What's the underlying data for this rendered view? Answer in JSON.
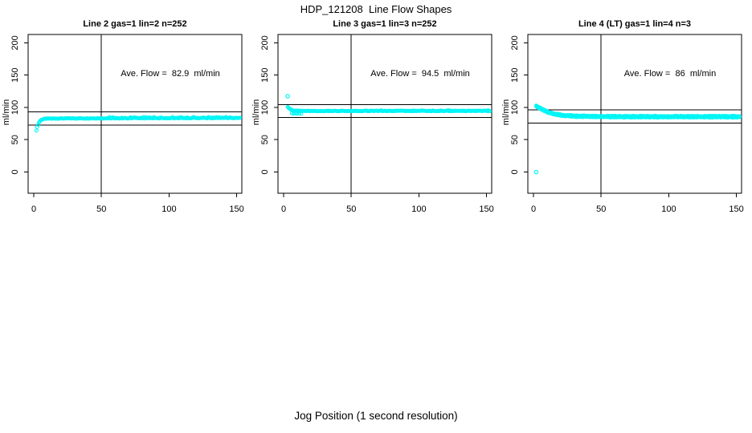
{
  "title": "HDP_121208  Line Flow Shapes",
  "xlabel": "Jog Position (1 second resolution)",
  "marker_color": "#00F5F5",
  "line_color": "#000000",
  "chart_data": [
    {
      "type": "scatter",
      "title": "Line 2 gas=1 lin=2 n=252",
      "ylabel": "ml/min",
      "annotation": "Ave. Flow =  82.9  ml/min",
      "ave_flow_ml_min": 82.9,
      "n_points": 252,
      "xticks": [
        0,
        50,
        100,
        150
      ],
      "yticks": [
        0,
        50,
        100,
        150,
        200
      ],
      "xlim": [
        -4.2,
        153.8
      ],
      "ylim": [
        -33,
        213
      ],
      "ref_lines_y": [
        92.9,
        72.9
      ],
      "vline_x": 50,
      "x_start": 2,
      "x_end": 152.4,
      "series_profile": [
        [
          2,
          64.6
        ],
        [
          3,
          72.5
        ],
        [
          4,
          77.5
        ],
        [
          5,
          79.8
        ],
        [
          6,
          81.2
        ],
        [
          8,
          82.3
        ],
        [
          10,
          82.6
        ],
        [
          20,
          82.9
        ],
        [
          40,
          83.0
        ],
        [
          60,
          83.1
        ],
        [
          80,
          83.2
        ],
        [
          100,
          83.3
        ],
        [
          120,
          83.4
        ],
        [
          152,
          83.5
        ]
      ],
      "noise": 0.4,
      "spikes": {
        "from_x": 55,
        "amp": 1.7,
        "threshold": 0.45
      },
      "run_offsets": [
        0
      ],
      "outlier_points": [],
      "extra_points": [],
      "annotation_pos": [
        101,
        152
      ],
      "grid": false
    },
    {
      "type": "scatter",
      "title": "Line 3 gas=1 lin=3 n=252",
      "ylabel": "ml/min",
      "annotation": "Ave. Flow =  94.5  ml/min",
      "ave_flow_ml_min": 94.5,
      "n_points": 252,
      "xticks": [
        0,
        50,
        100,
        150
      ],
      "yticks": [
        0,
        50,
        100,
        150,
        200
      ],
      "xlim": [
        -4.2,
        153.8
      ],
      "ylim": [
        -33,
        213
      ],
      "ref_lines_y": [
        104.5,
        84.5
      ],
      "vline_x": 50,
      "x_start": 3,
      "x_end": 152.4,
      "series_profile": [
        [
          3,
          100.8
        ],
        [
          3.6,
          99.3
        ],
        [
          4.2,
          98.2
        ],
        [
          5,
          97.1
        ],
        [
          6,
          96.1
        ],
        [
          7,
          95.5
        ],
        [
          8,
          95.1
        ],
        [
          10,
          94.7
        ],
        [
          13,
          94.5
        ],
        [
          20,
          94.4
        ],
        [
          40,
          94.4
        ],
        [
          80,
          94.5
        ],
        [
          120,
          94.5
        ],
        [
          152,
          94.5
        ]
      ],
      "noise": 0.4,
      "spikes": {
        "from_x": 60,
        "amp": 0.8,
        "threshold": 0.6
      },
      "run_offsets": [
        0
      ],
      "outlier_points": [
        [
          3,
          117.5
        ]
      ],
      "extra_points": [
        [
          6,
          90.9
        ],
        [
          7.2,
          90.4
        ],
        [
          8.5,
          90.7
        ],
        [
          10,
          90.3
        ],
        [
          11.5,
          90.6
        ],
        [
          13,
          90.2
        ]
      ],
      "annotation_pos": [
        100,
        152
      ],
      "grid": false
    },
    {
      "type": "scatter",
      "title": "Line 4 (LT) gas=1 lin=4 n=3",
      "ylabel": "ml/min",
      "annotation": "Ave. Flow =  86  ml/min",
      "ave_flow_ml_min": 86,
      "n_points": 160,
      "xticks": [
        0,
        50,
        100,
        150
      ],
      "yticks": [
        0,
        50,
        100,
        150,
        200
      ],
      "xlim": [
        -4.2,
        153.8
      ],
      "ylim": [
        -33,
        213
      ],
      "ref_lines_y": [
        96,
        76
      ],
      "vline_x": 50,
      "x_start": 2,
      "x_end": 152.4,
      "series_profile": [
        [
          2,
          102.3
        ],
        [
          4,
          99.6
        ],
        [
          6,
          97.2
        ],
        [
          8,
          95.1
        ],
        [
          10,
          93.3
        ],
        [
          12,
          91.8
        ],
        [
          14,
          90.6
        ],
        [
          16,
          89.6
        ],
        [
          18,
          88.8
        ],
        [
          20,
          88.1
        ],
        [
          23,
          87.4
        ],
        [
          26,
          86.9
        ],
        [
          30,
          86.5
        ],
        [
          35,
          86.2
        ],
        [
          40,
          86.0
        ],
        [
          50,
          85.8
        ],
        [
          60,
          85.7
        ],
        [
          80,
          85.6
        ],
        [
          110,
          85.6
        ],
        [
          152,
          85.6
        ]
      ],
      "noise": 0.5,
      "spikes": null,
      "run_offsets": [
        0.9,
        0,
        -0.9
      ],
      "outlier_points": [
        [
          2,
          -0.3
        ]
      ],
      "extra_points": [],
      "annotation_pos": [
        100,
        152
      ],
      "grid": false
    }
  ]
}
